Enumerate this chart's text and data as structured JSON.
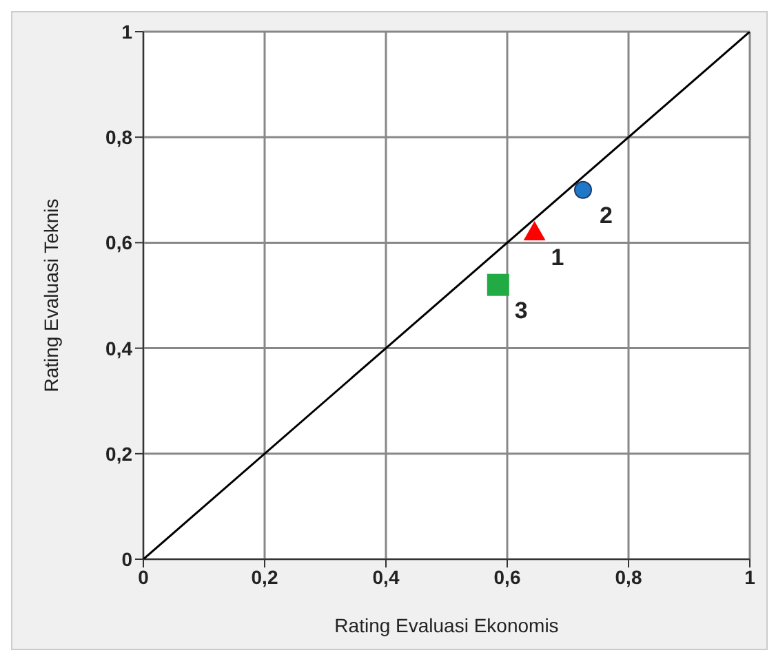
{
  "chart_data": {
    "type": "scatter",
    "xlabel": "Rating Evaluasi  Ekonomis",
    "ylabel": "Rating Evaluasi  Teknis",
    "xlim": [
      0,
      1
    ],
    "ylim": [
      0,
      1
    ],
    "xticks": [
      0,
      {
        "value": 0.2,
        "label": "0,2"
      },
      {
        "value": 0.4,
        "label": "0,4"
      },
      {
        "value": 0.6,
        "label": "0,6"
      },
      {
        "value": 0.8,
        "label": "0,8"
      },
      1
    ],
    "yticks": [
      0,
      {
        "value": 0.2,
        "label": "0,2"
      },
      {
        "value": 0.4,
        "label": "0,4"
      },
      {
        "value": 0.6,
        "label": "0,6"
      },
      {
        "value": 0.8,
        "label": "0,8"
      },
      1
    ],
    "grid": true,
    "legend": false,
    "series": [
      {
        "type": "line",
        "color": "#000000",
        "x": [
          0,
          1
        ],
        "values": [
          0,
          1
        ],
        "marker": "none"
      },
      {
        "color": "#ff0000",
        "x": [
          0.645
        ],
        "values": [
          0.62
        ],
        "marker": "triangle"
      },
      {
        "color": "#1f77c8",
        "x": [
          0.725
        ],
        "values": [
          0.7
        ],
        "marker": "circle"
      },
      {
        "color": "#22aa44",
        "x": [
          0.585
        ],
        "values": [
          0.52
        ],
        "marker": "square"
      }
    ],
    "annotations": [
      {
        "text": "1",
        "x": 0.645,
        "y": 0.62
      },
      {
        "text": "2",
        "x": 0.725,
        "y": 0.7
      },
      {
        "text": "3",
        "x": 0.585,
        "y": 0.52
      }
    ]
  }
}
